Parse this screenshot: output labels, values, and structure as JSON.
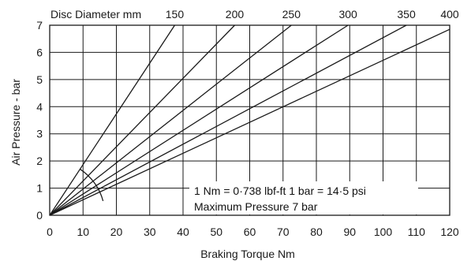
{
  "chart_data": {
    "type": "line",
    "title": "",
    "xlabel": "Braking Torque Nm",
    "ylabel": "Air Pressure - bar",
    "xlim": [
      0,
      120
    ],
    "ylim": [
      0,
      7
    ],
    "x_ticks": [
      0,
      10,
      20,
      30,
      40,
      50,
      60,
      70,
      80,
      90,
      100,
      110,
      120
    ],
    "y_ticks": [
      0,
      1,
      2,
      3,
      4,
      5,
      6,
      7
    ],
    "grid": true,
    "top_axis_label": "Disc Diameter mm",
    "series": [
      {
        "name": "150",
        "x": [
          0,
          37.5
        ],
        "y": [
          0,
          7
        ]
      },
      {
        "name": "200",
        "x": [
          0,
          55.5
        ],
        "y": [
          0,
          7
        ]
      },
      {
        "name": "250",
        "x": [
          0,
          72.5
        ],
        "y": [
          0,
          7
        ]
      },
      {
        "name": "300",
        "x": [
          0,
          89.5
        ],
        "y": [
          0,
          7
        ]
      },
      {
        "name": "350",
        "x": [
          0,
          107
        ],
        "y": [
          0,
          7
        ]
      },
      {
        "name": "400",
        "x": [
          0,
          120
        ],
        "y": [
          0,
          6.85
        ]
      }
    ],
    "annotations": [
      "1 Nm = 0·738 lbf-ft    1 bar = 14·5 psi",
      "Maximum Pressure 7 bar"
    ]
  },
  "colors": {
    "line": "#1a1a1a",
    "grid": "#1a1a1a",
    "background": "#ffffff"
  }
}
